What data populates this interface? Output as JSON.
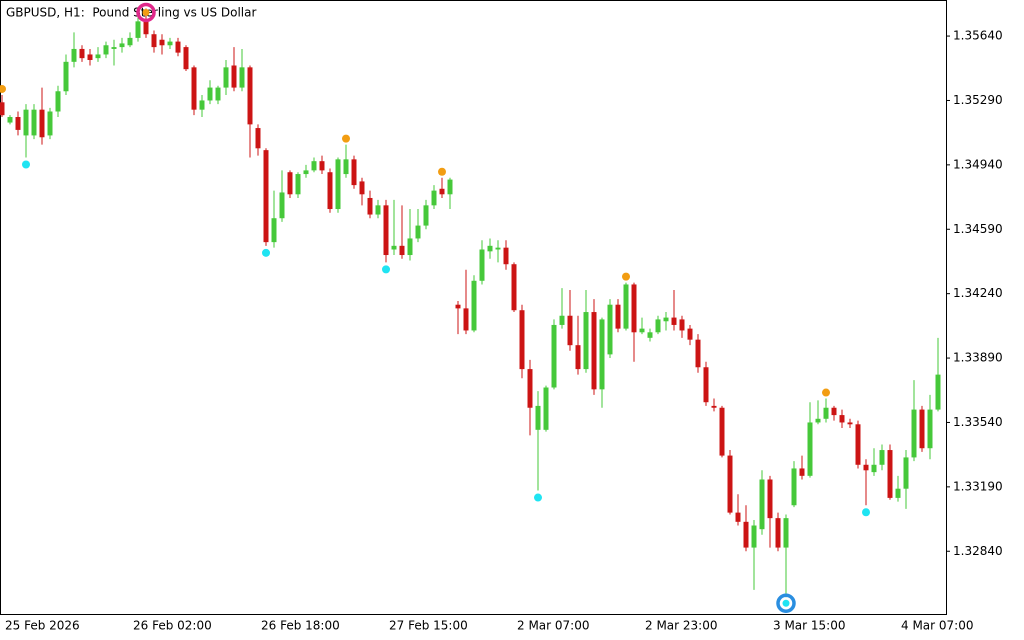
{
  "chart_data": {
    "type": "candlestick",
    "title": "GBPUSD, H1:  Pound Sterling vs US Dollar",
    "categories": [
      "25 Feb 2026",
      null,
      null,
      null,
      null,
      null,
      null,
      null,
      null,
      null,
      null,
      null,
      null,
      null,
      null,
      null,
      "26 Feb 02:00",
      null,
      null,
      null,
      null,
      null,
      null,
      null,
      null,
      null,
      null,
      null,
      null,
      null,
      null,
      null,
      "26 Feb 18:00",
      null,
      null,
      null,
      null,
      null,
      null,
      null,
      null,
      null,
      null,
      null,
      null,
      null,
      null,
      null,
      "27 Feb 15:00",
      null,
      null,
      null,
      null,
      null,
      null,
      null,
      null,
      null,
      null,
      null,
      null,
      null,
      null,
      null,
      "2 Mar 07:00",
      null,
      null,
      null,
      null,
      null,
      null,
      null,
      null,
      null,
      null,
      null,
      null,
      null,
      null,
      null,
      "2 Mar 23:00",
      null,
      null,
      null,
      null,
      null,
      null,
      null,
      null,
      null,
      null,
      null,
      null,
      null,
      null,
      null,
      "3 Mar 15:00",
      null,
      null,
      null,
      null,
      null,
      null,
      null,
      null,
      null,
      null,
      null,
      null,
      null,
      null,
      null,
      "4 Mar 07:00",
      null,
      null,
      null,
      null,
      null
    ],
    "open": [
      1.3528,
      1.3517,
      1.352,
      1.351,
      1.351,
      1.3524,
      1.351,
      1.3523,
      1.3534,
      1.355,
      1.3557,
      1.3554,
      1.3552,
      1.3554,
      1.3557,
      1.3558,
      1.3559,
      1.3563,
      1.3573,
      1.3565,
      1.3562,
      1.3559,
      1.3561,
      1.3558,
      1.3547,
      1.3524,
      1.3529,
      1.3529,
      1.3536,
      1.3548,
      1.3536,
      1.3547,
      1.3514,
      1.3502,
      1.3452,
      1.3465,
      1.349,
      1.3478,
      1.3489,
      1.3491,
      1.3496,
      1.349,
      1.347,
      1.3489,
      1.3497,
      1.3485,
      1.3476,
      1.3467,
      1.3472,
      1.3448,
      1.345,
      1.3445,
      1.3454,
      1.3461,
      1.3472,
      1.3481,
      1.3478,
      1.3418,
      1.3416,
      1.3404,
      1.3431,
      1.3447,
      1.3448,
      1.3449,
      1.344,
      1.3415,
      1.3383,
      1.335,
      1.335,
      1.3373,
      1.3407,
      1.3412,
      1.3396,
      1.3383,
      1.3414,
      1.3372,
      1.3391,
      1.3418,
      1.3405,
      1.3429,
      1.3403,
      1.34,
      1.3403,
      1.3409,
      1.3411,
      1.341,
      1.3405,
      1.3399,
      1.3384,
      1.3363,
      1.3362,
      1.3336,
      1.3305,
      1.33,
      1.3286,
      1.3296,
      1.3323,
      1.3302,
      1.3286,
      1.3309,
      1.3329,
      1.3325,
      1.3354,
      1.3356,
      1.3362,
      1.3358,
      1.3354,
      1.3353,
      1.3331,
      1.3327,
      1.3331,
      1.3339,
      1.3313,
      1.3318,
      1.3335,
      1.3361,
      1.334,
      1.3361
    ],
    "high": [
      1.3532,
      1.3521,
      1.3523,
      1.3527,
      1.3527,
      1.3536,
      1.3525,
      1.3537,
      1.3554,
      1.3566,
      1.3559,
      1.3557,
      1.3558,
      1.3561,
      1.3562,
      1.3563,
      1.3566,
      1.3574,
      1.3579,
      1.3567,
      1.3565,
      1.3563,
      1.3563,
      1.3559,
      1.3548,
      1.3532,
      1.354,
      1.3537,
      1.3551,
      1.3558,
      1.3557,
      1.3548,
      1.3516,
      1.3503,
      1.348,
      1.3491,
      1.3491,
      1.349,
      1.3494,
      1.3498,
      1.3499,
      1.3492,
      1.3498,
      1.3505,
      1.3499,
      1.3487,
      1.348,
      1.3475,
      1.3475,
      1.3475,
      1.3472,
      1.347,
      1.347,
      1.3475,
      1.3483,
      1.3487,
      1.3487,
      1.342,
      1.3437,
      1.3434,
      1.3453,
      1.3454,
      1.3453,
      1.3453,
      1.3441,
      1.3418,
      1.3388,
      1.3371,
      1.3374,
      1.341,
      1.3427,
      1.3426,
      1.3412,
      1.3426,
      1.3421,
      1.3411,
      1.3421,
      1.3421,
      1.343,
      1.343,
      1.3411,
      1.3405,
      1.3412,
      1.3414,
      1.3426,
      1.3412,
      1.3407,
      1.3402,
      1.3387,
      1.3367,
      1.3363,
      1.3339,
      1.3315,
      1.3309,
      1.3301,
      1.3328,
      1.3325,
      1.3305,
      1.3304,
      1.3333,
      1.3336,
      1.3365,
      1.3366,
      1.3367,
      1.3363,
      1.3361,
      1.3356,
      1.3355,
      1.3334,
      1.334,
      1.3342,
      1.3342,
      1.3325,
      1.3339,
      1.3377,
      1.3363,
      1.3369,
      1.34
    ],
    "low": [
      1.352,
      1.3516,
      1.351,
      1.3498,
      1.3508,
      1.3505,
      1.3508,
      1.352,
      1.3532,
      1.3547,
      1.355,
      1.3548,
      1.355,
      1.3552,
      1.3548,
      1.3555,
      1.3558,
      1.3561,
      1.3563,
      1.3555,
      1.3554,
      1.3557,
      1.3553,
      1.3545,
      1.3521,
      1.352,
      1.3527,
      1.3527,
      1.3532,
      1.3534,
      1.3534,
      1.3498,
      1.3499,
      1.345,
      1.3449,
      1.3463,
      1.3476,
      1.3476,
      1.3487,
      1.349,
      1.3489,
      1.3468,
      1.3468,
      1.3487,
      1.3481,
      1.3472,
      1.3465,
      1.3465,
      1.3441,
      1.3445,
      1.3443,
      1.3442,
      1.3452,
      1.3459,
      1.347,
      1.3476,
      1.347,
      1.3402,
      1.3402,
      1.3403,
      1.3429,
      1.3443,
      1.3441,
      1.3437,
      1.3414,
      1.3378,
      1.3347,
      1.3317,
      1.3349,
      1.3372,
      1.3405,
      1.3393,
      1.338,
      1.3381,
      1.3369,
      1.3362,
      1.3389,
      1.3403,
      1.3404,
      1.3387,
      1.3402,
      1.3398,
      1.3402,
      1.3404,
      1.3404,
      1.34,
      1.3396,
      1.3381,
      1.3363,
      1.336,
      1.3335,
      1.3304,
      1.3298,
      1.3284,
      1.3263,
      1.3293,
      1.3286,
      1.3284,
      1.3259,
      1.3308,
      1.3323,
      1.3324,
      1.3353,
      1.3354,
      1.3355,
      1.3351,
      1.3351,
      1.3329,
      1.3309,
      1.3325,
      1.3328,
      1.3312,
      1.3311,
      1.3307,
      1.3333,
      1.3338,
      1.3334,
      1.336
    ],
    "close": [
      1.3521,
      1.352,
      1.3513,
      1.3524,
      1.3524,
      1.3509,
      1.3523,
      1.3534,
      1.355,
      1.3557,
      1.3552,
      1.3551,
      1.3554,
      1.3559,
      1.3558,
      1.356,
      1.3563,
      1.3572,
      1.3565,
      1.3558,
      1.3559,
      1.3561,
      1.3555,
      1.3546,
      1.3524,
      1.3529,
      1.3536,
      1.3536,
      1.3547,
      1.3536,
      1.3547,
      1.3516,
      1.3503,
      1.3452,
      1.3465,
      1.3479,
      1.3478,
      1.3489,
      1.3491,
      1.3496,
      1.3491,
      1.347,
      1.3497,
      1.3497,
      1.3483,
      1.3478,
      1.3467,
      1.3472,
      1.3445,
      1.345,
      1.3445,
      1.3454,
      1.3461,
      1.3472,
      1.348,
      1.3478,
      1.3486,
      1.3416,
      1.3404,
      1.3431,
      1.3448,
      1.345,
      1.3449,
      1.344,
      1.3415,
      1.3383,
      1.3362,
      1.3363,
      1.3373,
      1.3407,
      1.3412,
      1.3396,
      1.3383,
      1.3414,
      1.3372,
      1.341,
      1.3418,
      1.3405,
      1.3429,
      1.3403,
      1.3405,
      1.3403,
      1.341,
      1.3411,
      1.3407,
      1.3404,
      1.3399,
      1.3384,
      1.3365,
      1.3362,
      1.3336,
      1.3305,
      1.33,
      1.3286,
      1.3298,
      1.3323,
      1.3302,
      1.3286,
      1.3302,
      1.3329,
      1.3325,
      1.3354,
      1.3356,
      1.3362,
      1.3358,
      1.3354,
      1.3353,
      1.3331,
      1.3328,
      1.3331,
      1.3339,
      1.3313,
      1.3318,
      1.3335,
      1.3361,
      1.334,
      1.3361,
      1.338
    ],
    "up_markers": [
      1.3532,
      null,
      null,
      null,
      null,
      null,
      null,
      null,
      null,
      null,
      null,
      null,
      null,
      null,
      null,
      null,
      null,
      null,
      null,
      null,
      null,
      null,
      null,
      null,
      null,
      null,
      null,
      null,
      null,
      null,
      null,
      null,
      null,
      null,
      null,
      null,
      null,
      null,
      null,
      null,
      null,
      null,
      null,
      1.3505,
      null,
      null,
      null,
      null,
      null,
      null,
      null,
      null,
      null,
      null,
      null,
      1.3487,
      null,
      null,
      null,
      null,
      null,
      null,
      null,
      null,
      null,
      null,
      null,
      null,
      null,
      null,
      null,
      null,
      null,
      null,
      null,
      null,
      null,
      null,
      1.343,
      null,
      null,
      null,
      null,
      null,
      null,
      null,
      null,
      null,
      null,
      null,
      null,
      null,
      null,
      null,
      null,
      null,
      null,
      null,
      null,
      null,
      null,
      null,
      null,
      1.3367,
      null,
      null,
      null,
      null,
      null,
      null,
      null,
      null,
      null,
      null,
      null,
      null,
      null,
      null
    ],
    "down_markers": [
      null,
      null,
      null,
      1.3498,
      null,
      null,
      null,
      null,
      null,
      null,
      null,
      null,
      null,
      null,
      null,
      null,
      null,
      null,
      null,
      null,
      null,
      null,
      null,
      null,
      null,
      null,
      null,
      null,
      null,
      null,
      null,
      null,
      null,
      1.345,
      null,
      null,
      null,
      null,
      null,
      null,
      null,
      null,
      null,
      null,
      null,
      null,
      null,
      null,
      1.3441,
      null,
      null,
      null,
      null,
      null,
      null,
      null,
      null,
      null,
      null,
      null,
      null,
      null,
      null,
      null,
      null,
      null,
      null,
      1.3317,
      null,
      null,
      null,
      null,
      null,
      null,
      null,
      null,
      null,
      null,
      null,
      null,
      null,
      null,
      null,
      null,
      null,
      null,
      null,
      null,
      null,
      null,
      null,
      null,
      null,
      null,
      null,
      null,
      null,
      null,
      null,
      null,
      null,
      null,
      null,
      null,
      null,
      null,
      null,
      null,
      1.3309,
      null,
      null,
      null,
      null,
      null,
      null,
      null,
      null,
      null
    ],
    "high_ring": [
      null,
      null,
      null,
      null,
      null,
      null,
      null,
      null,
      null,
      null,
      null,
      null,
      null,
      null,
      null,
      null,
      null,
      null,
      1.3579,
      null,
      null,
      null,
      null,
      null,
      null,
      null,
      null,
      null,
      null,
      null,
      null,
      null,
      null,
      null,
      null,
      null,
      null,
      null,
      null,
      null,
      null,
      null,
      null,
      null,
      null,
      null,
      null,
      null,
      null,
      null,
      null,
      null,
      null,
      null,
      null,
      null,
      null,
      null,
      null,
      null,
      null,
      null,
      null,
      null,
      null,
      null,
      null,
      null,
      null,
      null,
      null,
      null,
      null,
      null,
      null,
      null,
      null,
      null,
      null,
      null,
      null,
      null,
      null,
      null,
      null,
      null,
      null,
      null,
      null,
      null,
      null,
      null,
      null,
      null,
      null,
      null,
      null,
      null,
      null,
      null,
      null,
      null,
      null,
      null,
      null,
      null,
      null,
      null,
      null,
      null,
      null,
      null,
      null,
      null,
      null,
      null,
      null,
      null
    ],
    "low_ring": [
      null,
      null,
      null,
      null,
      null,
      null,
      null,
      null,
      null,
      null,
      null,
      null,
      null,
      null,
      null,
      null,
      null,
      null,
      null,
      null,
      null,
      null,
      null,
      null,
      null,
      null,
      null,
      null,
      null,
      null,
      null,
      null,
      null,
      null,
      null,
      null,
      null,
      null,
      null,
      null,
      null,
      null,
      null,
      null,
      null,
      null,
      null,
      null,
      null,
      null,
      null,
      null,
      null,
      null,
      null,
      null,
      null,
      null,
      null,
      null,
      null,
      null,
      null,
      null,
      null,
      null,
      null,
      null,
      null,
      null,
      null,
      null,
      null,
      null,
      null,
      null,
      null,
      null,
      null,
      null,
      null,
      null,
      null,
      null,
      null,
      null,
      null,
      null,
      null,
      null,
      null,
      null,
      null,
      null,
      null,
      null,
      null,
      null,
      1.3259,
      null,
      null,
      null,
      null,
      null,
      null,
      null,
      null,
      null,
      null,
      null,
      null,
      null,
      null,
      null,
      null,
      null,
      null,
      null
    ],
    "up_color": "#46c83a",
    "down_color": "#cc1414",
    "up_marker_color": "#f29d12",
    "down_marker_color": "#1fe4f2",
    "high_ring_color": "#e0288a",
    "low_ring_color": "#2a8ee0",
    "ylim": [
      1.32499,
      1.35836
    ],
    "yticks": [
      {
        "value": 1.3564,
        "label": "1.35640"
      },
      {
        "value": 1.3529,
        "label": "1.35290"
      },
      {
        "value": 1.3494,
        "label": "1.34940"
      },
      {
        "value": 1.3459,
        "label": "1.34590"
      },
      {
        "value": 1.3424,
        "label": "1.34240"
      },
      {
        "value": 1.3389,
        "label": "1.33890"
      },
      {
        "value": 1.3354,
        "label": "1.33540"
      },
      {
        "value": 1.3319,
        "label": "1.33190"
      },
      {
        "value": 1.3284,
        "label": "1.32840"
      }
    ],
    "grid": false
  }
}
